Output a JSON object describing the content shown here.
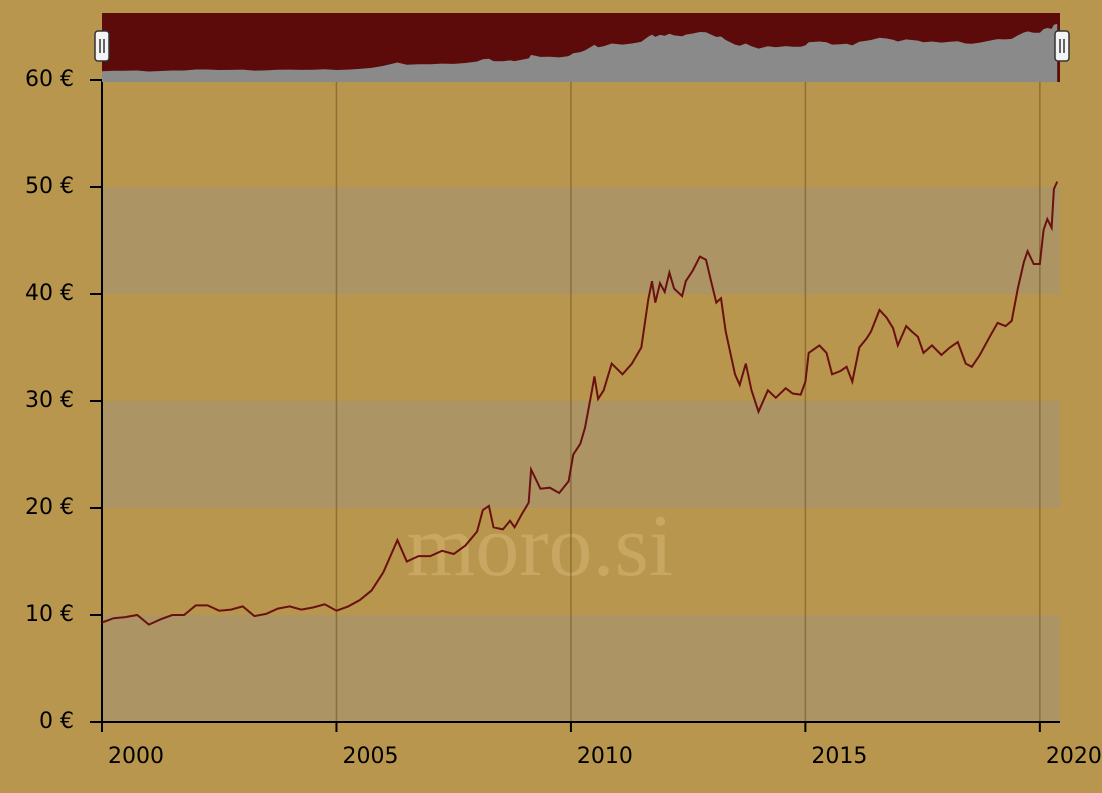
{
  "chart_data": {
    "type": "line",
    "watermark": "moro.si",
    "xlim": [
      2000,
      2020.43
    ],
    "xticks": [
      2000,
      2005,
      2010,
      2015,
      2020
    ],
    "ylim": [
      0,
      60
    ],
    "yticks": [
      {
        "value": 0,
        "label": "0 €"
      },
      {
        "value": 10,
        "label": "10 €"
      },
      {
        "value": 20,
        "label": "20 €"
      },
      {
        "value": 30,
        "label": "30 €"
      },
      {
        "value": 40,
        "label": "40 €"
      },
      {
        "value": 50,
        "label": "50 €"
      },
      {
        "value": 60,
        "label": "60 €"
      }
    ],
    "grid": true,
    "band_color": "#a9946a",
    "color": "#6b1010",
    "navigator": true,
    "navigator_colors": [
      "#5c0a0a",
      "#8a8a8a"
    ],
    "x": [
      2000.0,
      2000.25,
      2000.5,
      2000.75,
      2001.0,
      2001.25,
      2001.5,
      2001.75,
      2002.0,
      2002.25,
      2002.5,
      2002.75,
      2003.0,
      2003.25,
      2003.5,
      2003.75,
      2004.0,
      2004.25,
      2004.5,
      2004.75,
      2005.0,
      2005.25,
      2005.5,
      2005.75,
      2006.0,
      2006.3,
      2006.5,
      2006.75,
      2007.0,
      2007.25,
      2007.5,
      2007.75,
      2008.0,
      2008.12,
      2008.25,
      2008.35,
      2008.55,
      2008.7,
      2008.8,
      2008.95,
      2009.1,
      2009.15,
      2009.35,
      2009.55,
      2009.75,
      2009.95,
      2010.05,
      2010.2,
      2010.3,
      2010.45,
      2010.5,
      2010.58,
      2010.7,
      2010.87,
      2011.1,
      2011.3,
      2011.5,
      2011.65,
      2011.73,
      2011.8,
      2011.9,
      2012.0,
      2012.1,
      2012.2,
      2012.37,
      2012.45,
      2012.6,
      2012.75,
      2012.88,
      2013.0,
      2013.1,
      2013.2,
      2013.3,
      2013.5,
      2013.6,
      2013.73,
      2013.85,
      2014.0,
      2014.2,
      2014.37,
      2014.58,
      2014.73,
      2014.9,
      2015.0,
      2015.07,
      2015.3,
      2015.45,
      2015.57,
      2015.75,
      2015.88,
      2016.0,
      2016.15,
      2016.3,
      2016.4,
      2016.58,
      2016.73,
      2016.87,
      2016.97,
      2017.15,
      2017.27,
      2017.4,
      2017.52,
      2017.7,
      2017.9,
      2018.08,
      2018.25,
      2018.42,
      2018.55,
      2018.72,
      2018.93,
      2019.1,
      2019.27,
      2019.4,
      2019.53,
      2019.66,
      2019.74,
      2019.87,
      2020.0,
      2020.08,
      2020.16,
      2020.25,
      2020.3,
      2020.37
    ],
    "values": [
      9.3,
      9.7,
      9.8,
      10.0,
      9.1,
      9.6,
      10.0,
      10.0,
      10.9,
      10.9,
      10.4,
      10.5,
      10.8,
      9.9,
      10.1,
      10.6,
      10.8,
      10.5,
      10.7,
      11.0,
      10.4,
      10.8,
      11.4,
      12.3,
      14.0,
      17.0,
      15.0,
      15.5,
      15.5,
      16.0,
      15.7,
      16.5,
      17.8,
      19.8,
      20.2,
      18.2,
      18.0,
      18.8,
      18.2,
      19.4,
      20.5,
      23.6,
      21.8,
      21.9,
      21.4,
      22.5,
      25.0,
      26.0,
      27.5,
      31.0,
      32.3,
      30.2,
      31.0,
      33.5,
      32.5,
      33.5,
      35.0,
      39.5,
      41.2,
      39.2,
      41.0,
      40.2,
      42.0,
      40.5,
      39.8,
      41.2,
      42.2,
      43.5,
      43.2,
      41.0,
      39.2,
      39.6,
      36.5,
      32.5,
      31.5,
      33.5,
      31.0,
      29.0,
      31.0,
      30.3,
      31.2,
      30.7,
      30.6,
      31.8,
      34.5,
      35.2,
      34.5,
      32.5,
      32.8,
      33.2,
      31.8,
      35.0,
      35.8,
      36.5,
      38.5,
      37.8,
      36.8,
      35.2,
      37.0,
      36.5,
      36.0,
      34.5,
      35.2,
      34.3,
      35.0,
      35.5,
      33.5,
      33.2,
      34.3,
      36.0,
      37.3,
      37.0,
      37.5,
      40.5,
      43.0,
      44.0,
      42.8,
      42.8,
      46.0,
      47.0,
      46.2,
      49.8,
      50.5
    ]
  }
}
